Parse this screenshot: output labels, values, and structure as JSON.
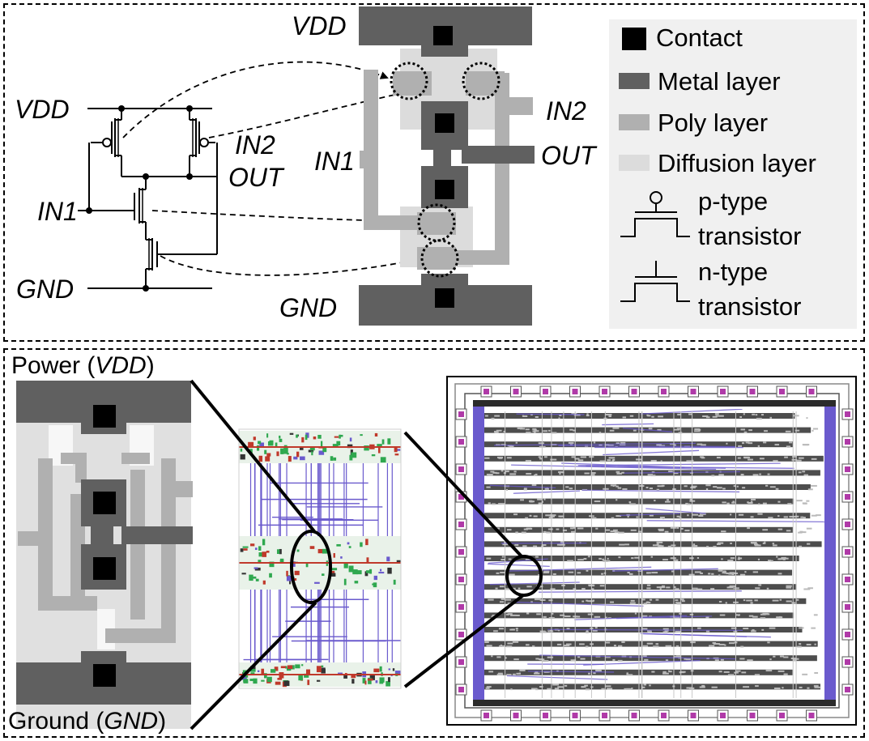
{
  "circuit": {
    "vdd": "VDD",
    "gnd": "GND",
    "in1": "IN1",
    "in2": "IN2",
    "out": "OUT"
  },
  "layout": {
    "vdd": "VDD",
    "gnd": "GND",
    "in1": "IN1",
    "in2": "IN2",
    "out": "OUT"
  },
  "legend": {
    "contact": "Contact",
    "metal": "Metal layer",
    "poly": "Poly layer",
    "diffusion": "Diffusion layer",
    "ptype_line1": "p-type",
    "ptype_line2": "transistor",
    "ntype_line1": "n-type",
    "ntype_line2": "transistor"
  },
  "bottom": {
    "power_prefix": "Power (",
    "power_net": "VDD",
    "power_suffix": ")",
    "ground_prefix": "Ground (",
    "ground_net": "GND",
    "ground_suffix": ")"
  },
  "colors": {
    "metal": "#606060",
    "poly": "#b0b0b0",
    "diffusion": "#dcdcdc",
    "contact": "#000000",
    "legend_bg": "#f0f0f0",
    "route_blue": "#6a5acd",
    "cell_green": "#2fa84f",
    "pad_magenta": "#b03aa8"
  }
}
